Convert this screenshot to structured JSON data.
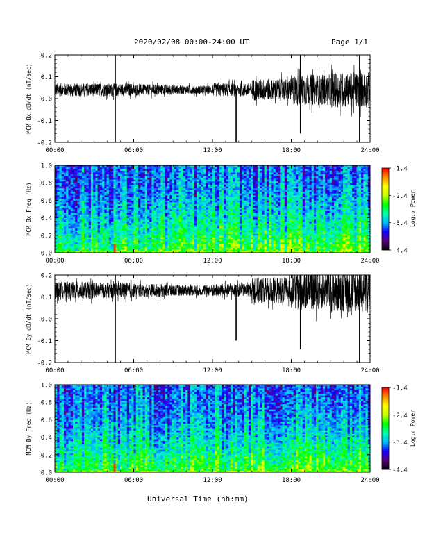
{
  "header": {
    "title": "2020/02/08  00:00-24:00 UT",
    "page": "Page 1/1"
  },
  "xlabel": "Universal Time (hh:mm)",
  "colors": {
    "trace": "#000000",
    "colormap": [
      "#000000",
      "#5a0078",
      "#1a00ff",
      "#00b4ff",
      "#00ffb0",
      "#00ff00",
      "#c8ff00",
      "#ffff00",
      "#ff8c00",
      "#ff0000"
    ]
  },
  "chart_data": [
    {
      "type": "line",
      "ylabel": "MCM Bx dB/dt (nT/sec)",
      "xlim": [
        0,
        24
      ],
      "ylim": [
        -0.2,
        0.2
      ],
      "x_ticks": [
        "00:00",
        "06:00",
        "12:00",
        "18:00",
        "24:00"
      ],
      "y_ticks": [
        "-0.2",
        "-0.1",
        "0.0",
        "0.1",
        "0.2"
      ],
      "baseline": 0.04,
      "noise_amplitude": [
        0.03,
        0.03,
        0.025,
        0.02,
        0.03,
        0.05,
        0.07,
        0.08
      ],
      "spikes": [
        {
          "x": 4.6,
          "low": -0.2,
          "high": 0.2
        },
        {
          "x": 13.8,
          "low": -0.2,
          "high": 0.04
        },
        {
          "x": 18.7,
          "low": -0.16,
          "high": 0.2
        },
        {
          "x": 23.2,
          "low": -0.2,
          "high": 0.2
        }
      ]
    },
    {
      "type": "heatmap",
      "ylabel": "MCM Bx Freq (Hz)",
      "colorbar_label": "Log₁₀ Power",
      "xlim": [
        0,
        24
      ],
      "ylim": [
        0,
        1.0
      ],
      "x_ticks": [
        "00:00",
        "06:00",
        "12:00",
        "18:00",
        "24:00"
      ],
      "y_ticks": [
        "0.0",
        "0.2",
        "0.4",
        "0.6",
        "0.8",
        "1.0"
      ],
      "clim": [
        -4.4,
        -1.4
      ],
      "cbar_ticks": [
        "-1.4",
        "-2.4",
        "-3.4",
        "-4.4"
      ]
    },
    {
      "type": "line",
      "ylabel": "MCM By dB/dt (nT/sec)",
      "xlim": [
        0,
        24
      ],
      "ylim": [
        -0.2,
        0.2
      ],
      "x_ticks": [
        "00:00",
        "06:00",
        "12:00",
        "18:00",
        "24:00"
      ],
      "y_ticks": [
        "-0.2",
        "-0.1",
        "0.0",
        "0.1",
        "0.2"
      ],
      "baseline": 0.13,
      "noise_amplitude": [
        0.04,
        0.035,
        0.03,
        0.025,
        0.03,
        0.06,
        0.09,
        0.1
      ],
      "spikes": [
        {
          "x": 4.6,
          "low": -0.2,
          "high": 0.2
        },
        {
          "x": 13.8,
          "low": -0.1,
          "high": 0.13
        },
        {
          "x": 18.7,
          "low": -0.14,
          "high": 0.2
        },
        {
          "x": 23.2,
          "low": -0.2,
          "high": 0.2
        }
      ]
    },
    {
      "type": "heatmap",
      "ylabel": "MCM By Freq (Hz)",
      "colorbar_label": "Log₁₀ Power",
      "xlim": [
        0,
        24
      ],
      "ylim": [
        0,
        1.0
      ],
      "x_ticks": [
        "00:00",
        "06:00",
        "12:00",
        "18:00",
        "24:00"
      ],
      "y_ticks": [
        "0.0",
        "0.2",
        "0.4",
        "0.6",
        "0.8",
        "1.0"
      ],
      "clim": [
        -4.4,
        -1.4
      ],
      "cbar_ticks": [
        "-1.4",
        "-2.4",
        "-3.4",
        "-4.4"
      ]
    }
  ]
}
